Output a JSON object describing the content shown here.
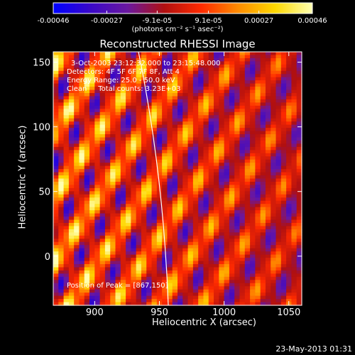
{
  "chart_data": {
    "type": "heatmap",
    "title": "Reconstructed RHESSI Image",
    "xlabel": "Heliocentric X (arcsec)",
    "ylabel": "Heliocentric Y (arcsec)",
    "xlim": [
      868,
      1060
    ],
    "ylim": [
      -38,
      158
    ],
    "x_ticks": [
      {
        "value": 900,
        "label": "900"
      },
      {
        "value": 950,
        "label": "950"
      },
      {
        "value": 1000,
        "label": "1000"
      },
      {
        "value": 1050,
        "label": "1050"
      }
    ],
    "y_ticks": [
      {
        "value": 0,
        "label": "0"
      },
      {
        "value": 50,
        "label": "50"
      },
      {
        "value": 100,
        "label": "100"
      },
      {
        "value": 150,
        "label": "150"
      }
    ],
    "colorbar": {
      "min": -0.00046,
      "max": 0.00046,
      "ticks": [
        {
          "value": -0.00046,
          "label": "-0.00046"
        },
        {
          "value": -0.00027,
          "label": "-0.00027"
        },
        {
          "value": -9.1e-05,
          "label": "-9.1e-05"
        },
        {
          "value": 9.1e-05,
          "label": "9.1e-05"
        },
        {
          "value": 0.00027,
          "label": "0.00027"
        },
        {
          "value": 0.00046,
          "label": "0.00046"
        }
      ],
      "units": "(photons cm⁻² s⁻¹ asec⁻²)",
      "colors": [
        "#0000ff",
        "#3a08c8",
        "#6a18a0",
        "#b01010",
        "#ff2a00",
        "#ff8c00",
        "#ffd800",
        "#ffffb0"
      ]
    },
    "annotations": [
      "3-Oct-2003 23:12:32.000 to 23:15:48.000",
      "Detectors: 4F 5F 6F 7F 8F, Att 4",
      "Energy Range: 25.0 - 50.0 keV",
      "Clean     Total counts: 3.23E+03"
    ],
    "peak_label": "Position of Peak = [867,150]",
    "limb_line": true,
    "grid": false
  },
  "footer": {
    "timestamp": "23-May-2013 01:31"
  }
}
